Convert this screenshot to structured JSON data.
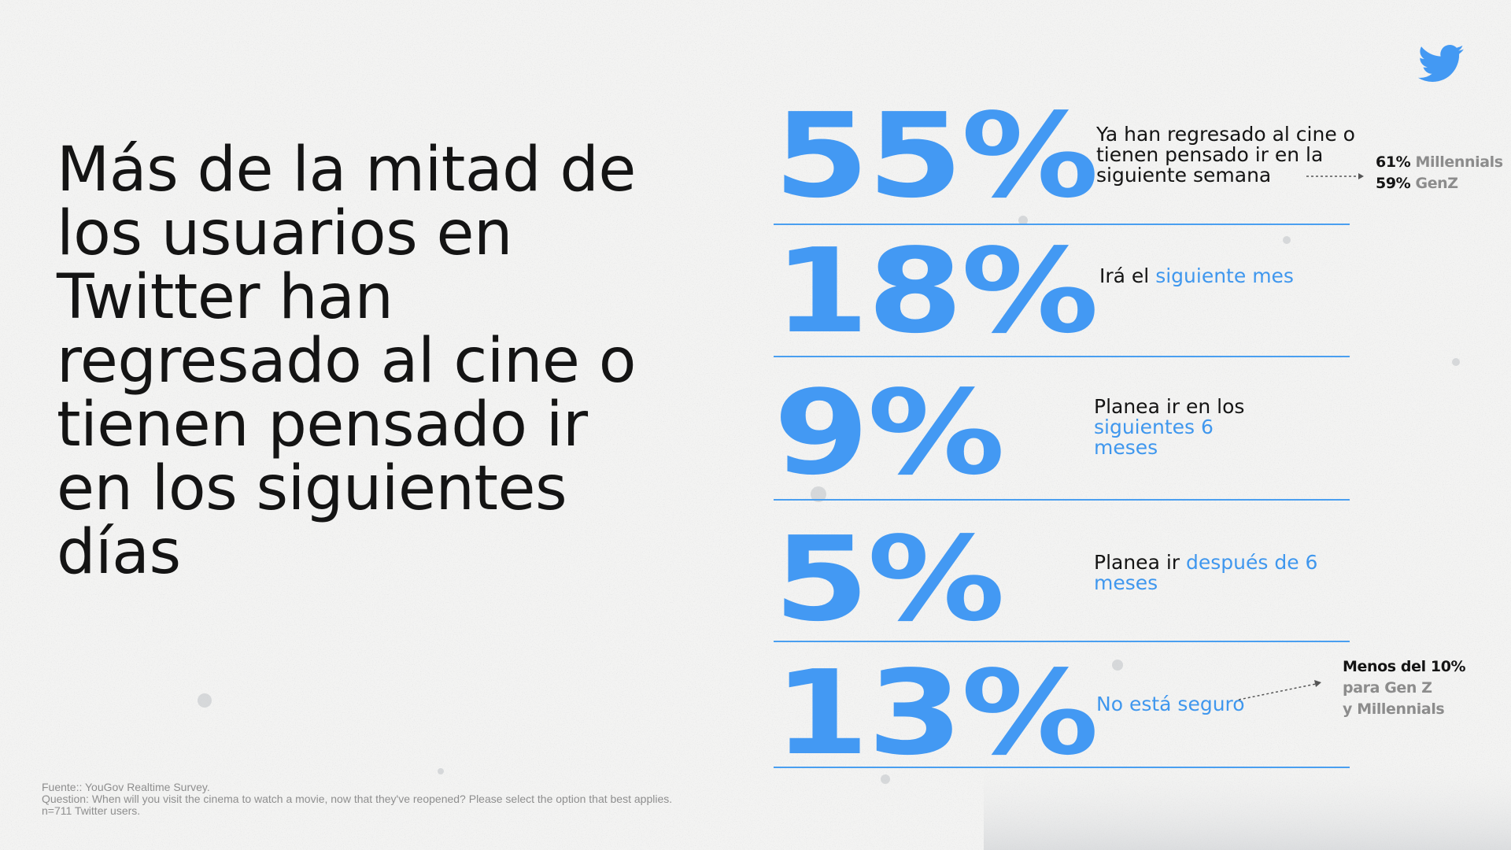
{
  "headline": "Más de la mitad de los usuarios en Twitter han regresado al cine o tienen pensado ir en los siguientes días",
  "colors": {
    "accent_blue": "#4399f3",
    "text_dark": "#141414",
    "text_gray": "#8c8c8c",
    "background": "#f3f3f2"
  },
  "logo": {
    "icon": "twitter-bird-icon"
  },
  "rows": [
    {
      "percent": "55%",
      "desc_dark": "Ya han regresado al cine o tienen pensado ir en la siguiente semana",
      "desc_blue": "",
      "side": [
        {
          "value": "61%",
          "label": "Millennials"
        },
        {
          "value": "59%",
          "label": "GenZ"
        }
      ]
    },
    {
      "percent": "18%",
      "desc_dark": "Irá el ",
      "desc_blue": "siguiente mes"
    },
    {
      "percent": "9%",
      "desc_dark": "Planea ir en los ",
      "desc_blue": "siguientes 6 meses"
    },
    {
      "percent": "5%",
      "desc_dark": "Planea ir ",
      "desc_blue": "después de 6 meses"
    },
    {
      "percent": "13%",
      "desc_dark": "",
      "desc_blue": "No está seguro",
      "side_title": "Menos del 10%",
      "side_body": "para Gen Z y Millennials"
    }
  ],
  "source": {
    "line1": "Fuente:: YouGov Realtime Survey.",
    "line2": "Question: When will you visit the cinema to watch a movie, now that they've reopened? Please select the option that best applies.",
    "line3": "n=711 Twitter users."
  }
}
